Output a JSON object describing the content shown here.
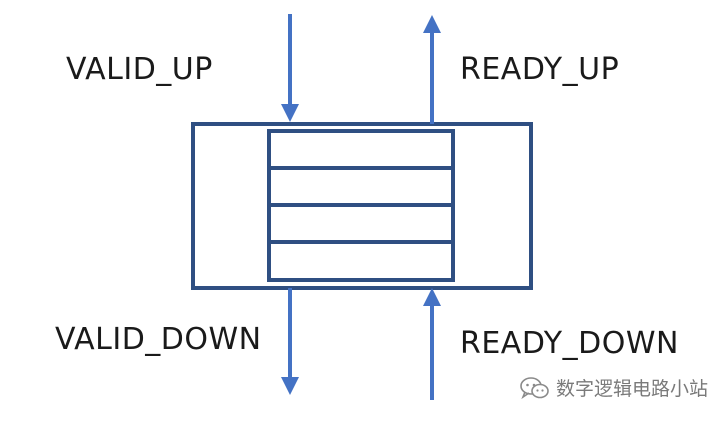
{
  "labels": {
    "valid_up": "VALID_UP",
    "ready_up": "READY_UP",
    "valid_down": "VALID_DOWN",
    "ready_down": "READY_DOWN"
  },
  "watermark": {
    "icon": "wechat-icon",
    "text": "数字逻辑电路小站"
  },
  "colors": {
    "accent": "#4472c4",
    "box_stroke": "#2f4f82",
    "text": "#1a1a1a",
    "watermark": "#7a7a7a"
  },
  "fifo": {
    "slot_count": 4
  }
}
